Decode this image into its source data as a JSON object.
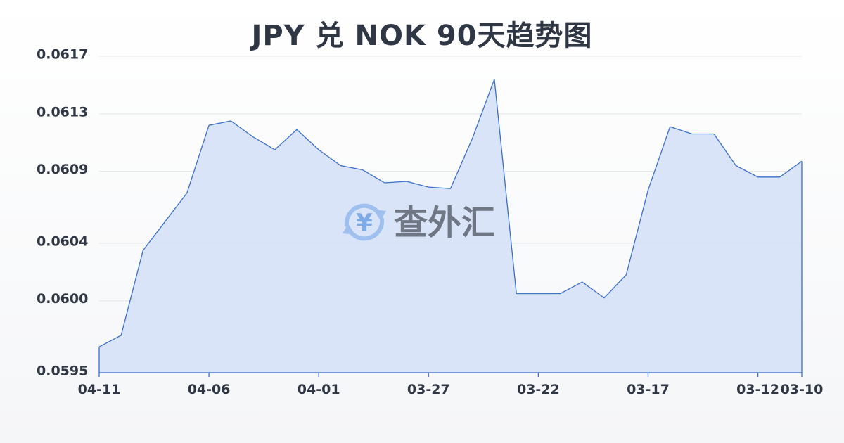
{
  "chart_data": {
    "type": "area",
    "title": "JPY 兑 NOK 90天趋势图",
    "xlabel": "",
    "ylabel": "",
    "ylim": [
      0.0595,
      0.0617
    ],
    "y_ticks": [
      "0.0617",
      "0.0613",
      "0.0609",
      "0.0604",
      "0.0600",
      "0.0595"
    ],
    "x_ticks": [
      "04-11",
      "04-06",
      "04-01",
      "03-27",
      "03-22",
      "03-17",
      "03-12",
      "03-10"
    ],
    "x": [
      "04-11",
      "04-10",
      "04-09",
      "04-08",
      "04-07",
      "04-06",
      "04-05",
      "04-04",
      "04-03",
      "04-02",
      "04-01",
      "03-31",
      "03-30",
      "03-29",
      "03-28",
      "03-27",
      "03-26",
      "03-25",
      "03-24",
      "03-23",
      "03-22",
      "03-21",
      "03-20",
      "03-19",
      "03-18",
      "03-17",
      "03-16",
      "03-15",
      "03-14",
      "03-13",
      "03-12",
      "03-11",
      "03-10"
    ],
    "values": [
      0.05968,
      0.05976,
      0.06035,
      0.06055,
      0.06075,
      0.06122,
      0.06125,
      0.06114,
      0.06105,
      0.06119,
      0.06105,
      0.06094,
      0.06091,
      0.06082,
      0.06083,
      0.06079,
      0.06078,
      0.06113,
      0.06154,
      0.06005,
      0.06005,
      0.06005,
      0.06013,
      0.06002,
      0.06018,
      0.06077,
      0.06121,
      0.06116,
      0.06116,
      0.06094,
      0.06086,
      0.06086,
      0.06097
    ],
    "grid": true,
    "legend": "none",
    "colors": {
      "line": "#3a6fc9",
      "fill": "#d6e1f7",
      "grid": "#e3e6ea",
      "axis": "#3a6fc9"
    }
  },
  "watermark": {
    "text": "查外汇",
    "icon": "yen-exchange-icon",
    "icon_glyph": "¥"
  }
}
